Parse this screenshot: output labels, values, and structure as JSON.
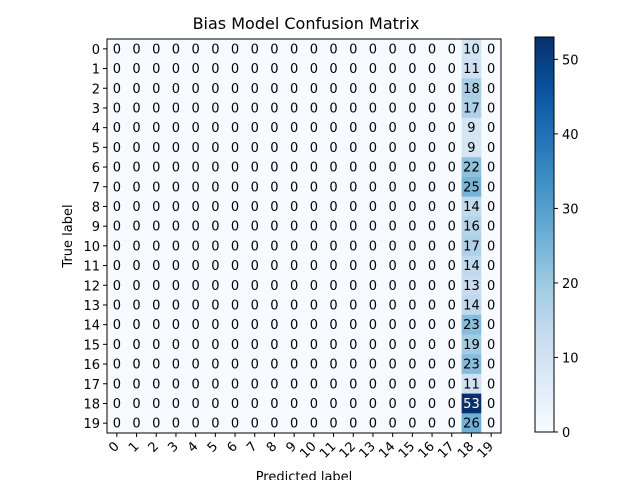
{
  "chart_data": {
    "type": "heatmap",
    "title": "Bias Model Confusion Matrix",
    "xlabel": "Predicted label",
    "ylabel": "True label",
    "x_ticks": [
      "0",
      "1",
      "2",
      "3",
      "4",
      "5",
      "6",
      "7",
      "8",
      "9",
      "10",
      "11",
      "12",
      "13",
      "14",
      "15",
      "16",
      "17",
      "18",
      "19"
    ],
    "y_ticks": [
      "0",
      "1",
      "2",
      "3",
      "4",
      "5",
      "6",
      "7",
      "8",
      "9",
      "10",
      "11",
      "12",
      "13",
      "14",
      "15",
      "16",
      "17",
      "18",
      "19"
    ],
    "colormap": "Blues",
    "colorbar": {
      "range": [
        0,
        53
      ],
      "ticks": [
        0,
        10,
        20,
        30,
        40,
        50
      ]
    },
    "predicted_col18_counts": [
      10,
      11,
      18,
      17,
      9,
      9,
      22,
      25,
      14,
      16,
      17,
      14,
      13,
      14,
      23,
      19,
      23,
      11,
      53,
      26
    ],
    "matrix": [
      [
        0,
        0,
        0,
        0,
        0,
        0,
        0,
        0,
        0,
        0,
        0,
        0,
        0,
        0,
        0,
        0,
        0,
        0,
        10,
        0
      ],
      [
        0,
        0,
        0,
        0,
        0,
        0,
        0,
        0,
        0,
        0,
        0,
        0,
        0,
        0,
        0,
        0,
        0,
        0,
        11,
        0
      ],
      [
        0,
        0,
        0,
        0,
        0,
        0,
        0,
        0,
        0,
        0,
        0,
        0,
        0,
        0,
        0,
        0,
        0,
        0,
        18,
        0
      ],
      [
        0,
        0,
        0,
        0,
        0,
        0,
        0,
        0,
        0,
        0,
        0,
        0,
        0,
        0,
        0,
        0,
        0,
        0,
        17,
        0
      ],
      [
        0,
        0,
        0,
        0,
        0,
        0,
        0,
        0,
        0,
        0,
        0,
        0,
        0,
        0,
        0,
        0,
        0,
        0,
        9,
        0
      ],
      [
        0,
        0,
        0,
        0,
        0,
        0,
        0,
        0,
        0,
        0,
        0,
        0,
        0,
        0,
        0,
        0,
        0,
        0,
        9,
        0
      ],
      [
        0,
        0,
        0,
        0,
        0,
        0,
        0,
        0,
        0,
        0,
        0,
        0,
        0,
        0,
        0,
        0,
        0,
        0,
        22,
        0
      ],
      [
        0,
        0,
        0,
        0,
        0,
        0,
        0,
        0,
        0,
        0,
        0,
        0,
        0,
        0,
        0,
        0,
        0,
        0,
        25,
        0
      ],
      [
        0,
        0,
        0,
        0,
        0,
        0,
        0,
        0,
        0,
        0,
        0,
        0,
        0,
        0,
        0,
        0,
        0,
        0,
        14,
        0
      ],
      [
        0,
        0,
        0,
        0,
        0,
        0,
        0,
        0,
        0,
        0,
        0,
        0,
        0,
        0,
        0,
        0,
        0,
        0,
        16,
        0
      ],
      [
        0,
        0,
        0,
        0,
        0,
        0,
        0,
        0,
        0,
        0,
        0,
        0,
        0,
        0,
        0,
        0,
        0,
        0,
        17,
        0
      ],
      [
        0,
        0,
        0,
        0,
        0,
        0,
        0,
        0,
        0,
        0,
        0,
        0,
        0,
        0,
        0,
        0,
        0,
        0,
        14,
        0
      ],
      [
        0,
        0,
        0,
        0,
        0,
        0,
        0,
        0,
        0,
        0,
        0,
        0,
        0,
        0,
        0,
        0,
        0,
        0,
        13,
        0
      ],
      [
        0,
        0,
        0,
        0,
        0,
        0,
        0,
        0,
        0,
        0,
        0,
        0,
        0,
        0,
        0,
        0,
        0,
        0,
        14,
        0
      ],
      [
        0,
        0,
        0,
        0,
        0,
        0,
        0,
        0,
        0,
        0,
        0,
        0,
        0,
        0,
        0,
        0,
        0,
        0,
        23,
        0
      ],
      [
        0,
        0,
        0,
        0,
        0,
        0,
        0,
        0,
        0,
        0,
        0,
        0,
        0,
        0,
        0,
        0,
        0,
        0,
        19,
        0
      ],
      [
        0,
        0,
        0,
        0,
        0,
        0,
        0,
        0,
        0,
        0,
        0,
        0,
        0,
        0,
        0,
        0,
        0,
        0,
        23,
        0
      ],
      [
        0,
        0,
        0,
        0,
        0,
        0,
        0,
        0,
        0,
        0,
        0,
        0,
        0,
        0,
        0,
        0,
        0,
        0,
        11,
        0
      ],
      [
        0,
        0,
        0,
        0,
        0,
        0,
        0,
        0,
        0,
        0,
        0,
        0,
        0,
        0,
        0,
        0,
        0,
        0,
        53,
        0
      ],
      [
        0,
        0,
        0,
        0,
        0,
        0,
        0,
        0,
        0,
        0,
        0,
        0,
        0,
        0,
        0,
        0,
        0,
        0,
        26,
        0
      ]
    ]
  }
}
